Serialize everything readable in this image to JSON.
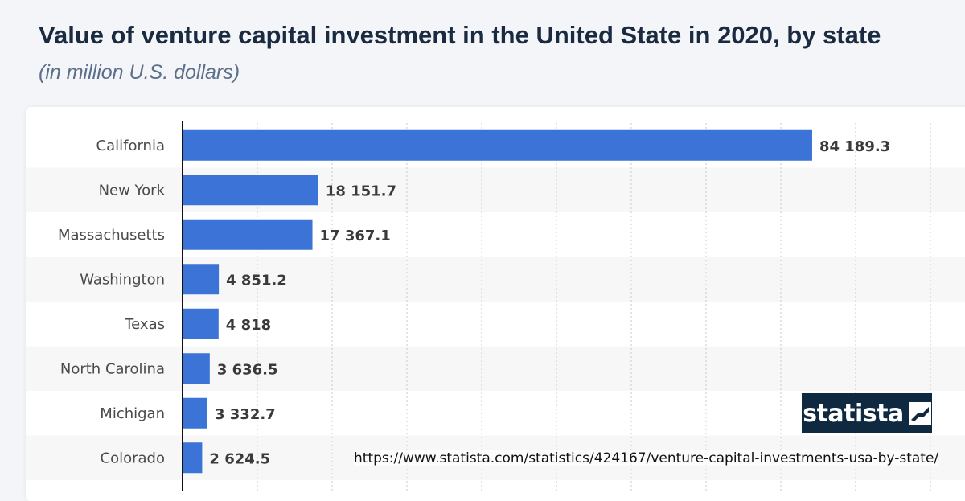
{
  "header": {
    "title": "Value of venture capital investment in the United State in 2020, by state",
    "subtitle": "(in million U.S. dollars)"
  },
  "chart_data": {
    "type": "bar",
    "orientation": "horizontal",
    "categories": [
      "California",
      "New York",
      "Massachusetts",
      "Washington",
      "Texas",
      "North Carolina",
      "Michigan",
      "Colorado"
    ],
    "values": [
      84189.3,
      18151.7,
      17367.1,
      4851.2,
      4818,
      3636.5,
      3332.7,
      2624.5
    ],
    "value_labels": [
      "84 189.3",
      "18 151.7",
      "17 367.1",
      "4 851.2",
      "4 818",
      "3 636.5",
      "3 332.7",
      "2 624.5"
    ],
    "xlim": [
      0,
      100000
    ],
    "grid": true,
    "bar_color": "#3b73d6",
    "stripe_color": "#f7f7f7"
  },
  "branding": {
    "logo_text": "statista",
    "source_url": "https://www.statista.com/statistics/424167/venture-capital-investments-usa-by-state/"
  }
}
